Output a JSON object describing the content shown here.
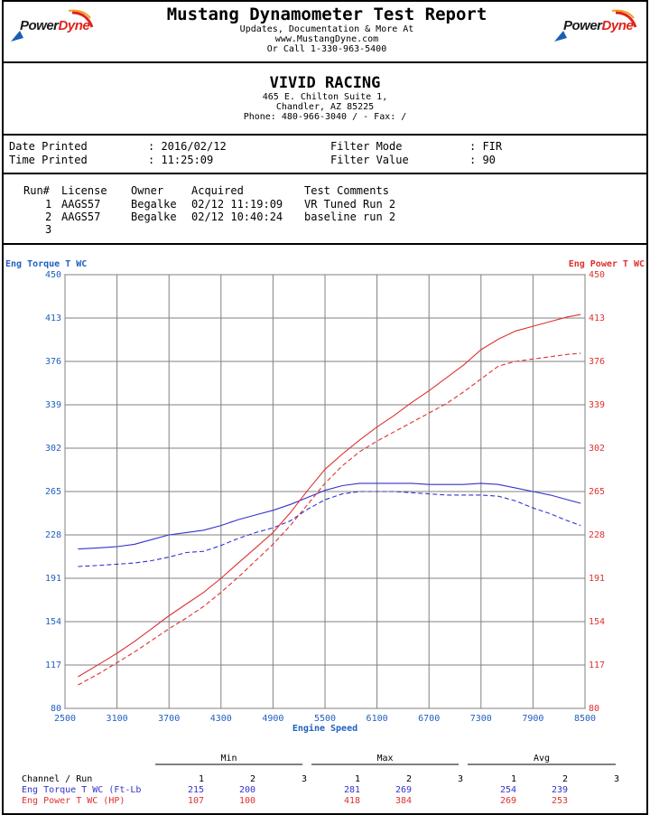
{
  "header": {
    "title": "Mustang Dynamometer Test Report",
    "line1": "Updates, Documentation & More At",
    "line2": "www.MustangDyne.com",
    "line3": "Or Call 1-330-963-5400",
    "logo_text_a": "Power",
    "logo_text_b": "Dyne"
  },
  "shop": {
    "name": "VIVID RACING",
    "address1": "465 E. Chilton Suite 1,",
    "address2": "Chandler, AZ  85225",
    "phone": "Phone: 480-966-3040 /  - Fax:  /"
  },
  "info": {
    "date_label": "Date Printed",
    "date_value": ": 2016/02/12",
    "time_label": "Time Printed",
    "time_value": ": 11:25:09",
    "filter_mode_label": "Filter Mode",
    "filter_mode_value": ": FIR",
    "filter_value_label": "Filter Value",
    "filter_value_value": ": 90"
  },
  "runs": {
    "headers": [
      "Run#",
      "License",
      "Owner",
      "Acquired",
      "Test Comments"
    ],
    "rows": [
      {
        "run": "1",
        "license": "AAGS57",
        "owner": "Begalke",
        "acquired": "02/12 11:19:09",
        "comment": "VR Tuned Run 2"
      },
      {
        "run": "2",
        "license": "AAGS57",
        "owner": "Begalke",
        "acquired": "02/12 10:40:24",
        "comment": "baseline run 2"
      },
      {
        "run": "3",
        "license": "",
        "owner": "",
        "acquired": "",
        "comment": ""
      }
    ]
  },
  "colors": {
    "torque": "#3333cc",
    "power": "#e03030",
    "grid": "#808080",
    "axis_blue": "#2060c0"
  },
  "chart_data": {
    "type": "line",
    "title": "",
    "xlabel": "Engine Speed",
    "ylabel_left": "Eng Torque T WC",
    "ylabel_right": "Eng Power T WC",
    "xlim": [
      2500,
      8500
    ],
    "ylim": [
      80,
      450
    ],
    "x_ticks": [
      2500,
      3100,
      3700,
      4300,
      4900,
      5500,
      6100,
      6700,
      7300,
      7900,
      8500
    ],
    "y_ticks": [
      80,
      117,
      154,
      191,
      228,
      265,
      302,
      339,
      376,
      413,
      450
    ],
    "grid": true,
    "series": [
      {
        "name": "Eng Torque T WC",
        "run": 1,
        "color": "#3333cc",
        "dash": "solid",
        "x": [
          2650,
          2900,
          3100,
          3300,
          3500,
          3700,
          3900,
          4100,
          4300,
          4500,
          4700,
          4900,
          5100,
          5300,
          5500,
          5700,
          5900,
          6100,
          6300,
          6500,
          6700,
          6900,
          7100,
          7300,
          7500,
          7700,
          7900,
          8100,
          8300,
          8450
        ],
        "y": [
          216,
          217,
          218,
          220,
          224,
          228,
          230,
          232,
          236,
          241,
          245,
          249,
          254,
          260,
          266,
          270,
          272,
          272,
          272,
          272,
          271,
          271,
          271,
          272,
          271,
          268,
          265,
          262,
          258,
          255
        ]
      },
      {
        "name": "Eng Torque T WC",
        "run": 2,
        "color": "#3333cc",
        "dash": "dashed",
        "x": [
          2650,
          2900,
          3100,
          3300,
          3500,
          3700,
          3900,
          4100,
          4300,
          4500,
          4700,
          4900,
          5100,
          5300,
          5500,
          5700,
          5900,
          6100,
          6300,
          6500,
          6700,
          6900,
          7100,
          7300,
          7500,
          7700,
          7900,
          8100,
          8300,
          8450
        ],
        "y": [
          201,
          202,
          203,
          204,
          206,
          209,
          213,
          214,
          219,
          225,
          230,
          234,
          240,
          250,
          258,
          263,
          265,
          265,
          265,
          264,
          263,
          262,
          262,
          262,
          261,
          257,
          251,
          246,
          240,
          236
        ]
      },
      {
        "name": "Eng Power T WC",
        "run": 1,
        "color": "#e03030",
        "dash": "solid",
        "x": [
          2650,
          2900,
          3100,
          3300,
          3500,
          3700,
          3900,
          4100,
          4300,
          4500,
          4700,
          4900,
          5100,
          5300,
          5500,
          5700,
          5900,
          6100,
          6300,
          6500,
          6700,
          6900,
          7100,
          7300,
          7500,
          7700,
          7900,
          8100,
          8300,
          8450
        ],
        "y": [
          107,
          118,
          127,
          137,
          148,
          159,
          169,
          179,
          191,
          204,
          217,
          230,
          247,
          266,
          284,
          297,
          309,
          320,
          330,
          341,
          351,
          362,
          373,
          386,
          395,
          402,
          406,
          410,
          414,
          416
        ]
      },
      {
        "name": "Eng Power T WC",
        "run": 2,
        "color": "#e03030",
        "dash": "dashed",
        "x": [
          2650,
          2900,
          3100,
          3300,
          3500,
          3700,
          3900,
          4100,
          4300,
          4500,
          4700,
          4900,
          5100,
          5300,
          5500,
          5700,
          5900,
          6100,
          6300,
          6500,
          6700,
          6900,
          7100,
          7300,
          7500,
          7700,
          7900,
          8100,
          8300,
          8450
        ],
        "y": [
          100,
          110,
          119,
          128,
          138,
          148,
          157,
          167,
          179,
          192,
          206,
          220,
          236,
          254,
          272,
          287,
          299,
          308,
          316,
          324,
          332,
          340,
          350,
          361,
          372,
          376,
          378,
          380,
          382,
          383
        ]
      }
    ]
  },
  "stats": {
    "groups": [
      "Min",
      "Max",
      "Avg"
    ],
    "channel_header": "Channel / Run",
    "run_cols": [
      "1",
      "2",
      "3"
    ],
    "rows": [
      {
        "label": "Eng Torque T WC (Ft-Lb",
        "color": "#3333cc",
        "min": [
          "215",
          "200",
          ""
        ],
        "max": [
          "281",
          "269",
          ""
        ],
        "avg": [
          "254",
          "239",
          ""
        ]
      },
      {
        "label": "Eng Power T WC (HP)",
        "color": "#e03030",
        "min": [
          "107",
          "100",
          ""
        ],
        "max": [
          "418",
          "384",
          ""
        ],
        "avg": [
          "269",
          "253",
          ""
        ]
      }
    ]
  }
}
